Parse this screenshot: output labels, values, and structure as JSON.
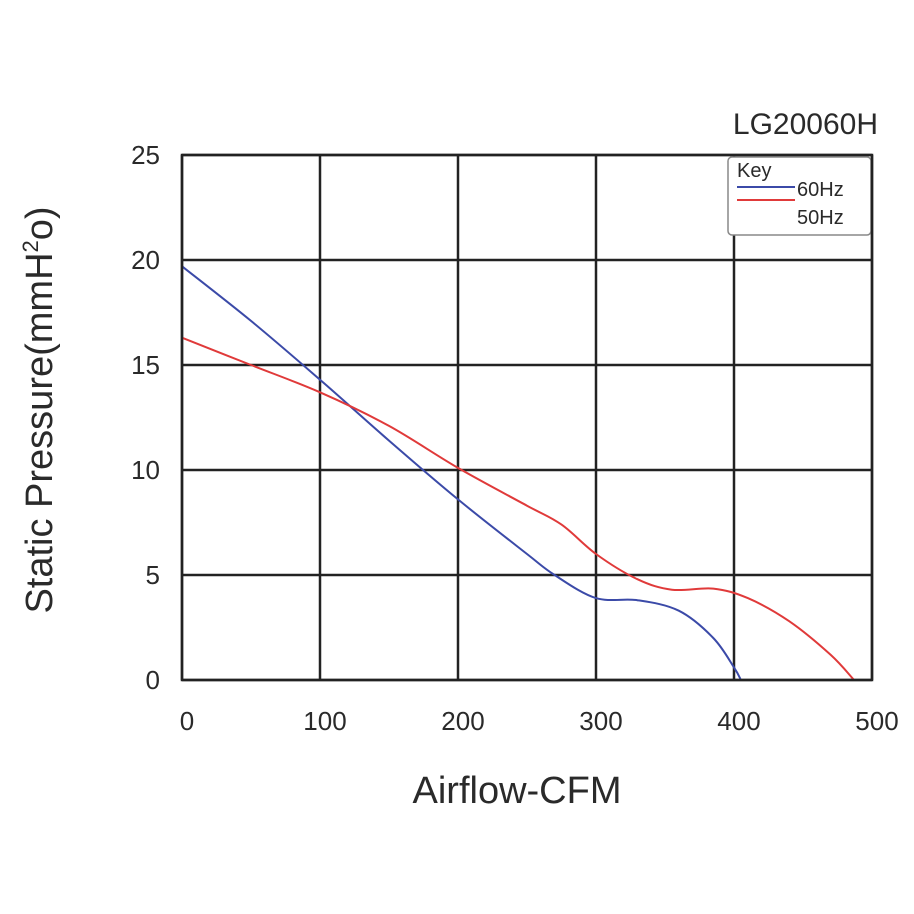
{
  "chart_data": {
    "type": "line",
    "title": "LG20060H",
    "xlabel": "Airflow-CFM",
    "ylabel_main": "Static Pressure(mmH",
    "ylabel_sup": "2",
    "ylabel_end": "o)",
    "xlim": [
      0,
      500
    ],
    "ylim": [
      0,
      25
    ],
    "x_ticks": [
      0,
      100,
      200,
      300,
      400,
      500
    ],
    "y_ticks": [
      0,
      5,
      10,
      15,
      20,
      25
    ],
    "grid": true,
    "legend": {
      "placement": "top-right",
      "title": "Key"
    },
    "series": [
      {
        "name": "60Hz",
        "color": "#3b4aa8",
        "points": [
          [
            0,
            19.7
          ],
          [
            50,
            17.1
          ],
          [
            100,
            14.3
          ],
          [
            150,
            11.4
          ],
          [
            200,
            8.6
          ],
          [
            250,
            6.0
          ],
          [
            270,
            5.0
          ],
          [
            300,
            3.9
          ],
          [
            330,
            3.8
          ],
          [
            360,
            3.3
          ],
          [
            385,
            2.0
          ],
          [
            400,
            0.6
          ],
          [
            405,
            0
          ]
        ]
      },
      {
        "name": "50Hz",
        "color": "#e03a3a",
        "points": [
          [
            0,
            16.3
          ],
          [
            50,
            15.0
          ],
          [
            100,
            13.7
          ],
          [
            150,
            12.1
          ],
          [
            200,
            10.1
          ],
          [
            250,
            8.3
          ],
          [
            275,
            7.4
          ],
          [
            300,
            6.0
          ],
          [
            330,
            4.8
          ],
          [
            355,
            4.3
          ],
          [
            385,
            4.35
          ],
          [
            410,
            3.9
          ],
          [
            440,
            2.8
          ],
          [
            470,
            1.2
          ],
          [
            487,
            0
          ]
        ]
      }
    ]
  }
}
